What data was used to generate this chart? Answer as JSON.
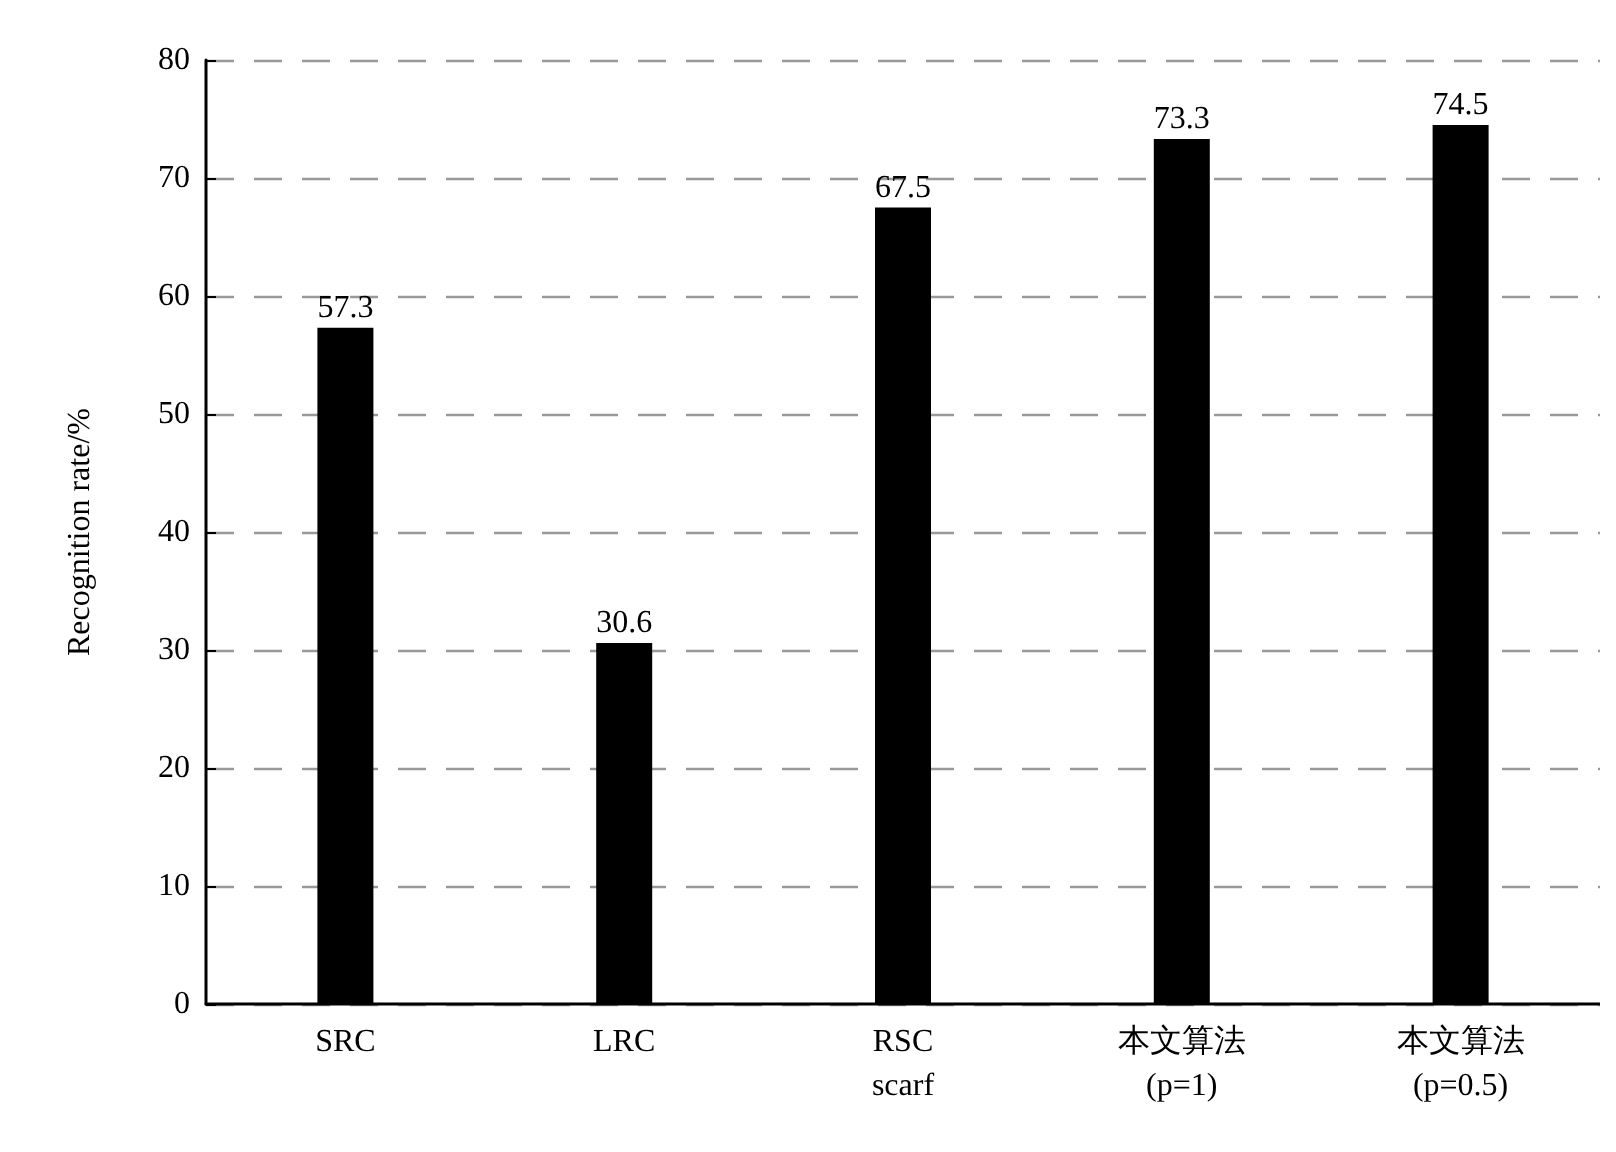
{
  "chart_data": {
    "type": "bar",
    "ylabel": "Recognition rate/%",
    "categories": [
      "SRC",
      "LRC",
      "RSC\nscarf",
      "本文算法\n(p=1)",
      "本文算法\n(p=0.5)"
    ],
    "values": [
      57.3,
      30.6,
      67.5,
      73.3,
      74.5
    ],
    "color": "#000000",
    "data_labels": true,
    "ylim": [
      0,
      80
    ],
    "yticks": [
      0,
      10,
      20,
      30,
      40,
      50,
      60,
      70,
      80
    ],
    "grid": "y"
  }
}
